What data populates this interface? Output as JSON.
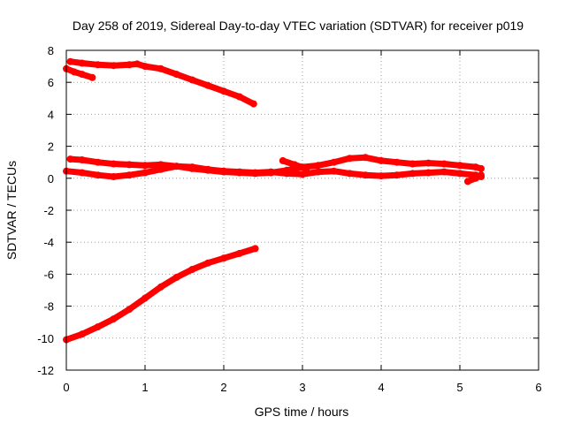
{
  "chart_data": {
    "type": "scatter",
    "title": "Day 258 of 2019, Sidereal Day-to-day VTEC variation (SDTVAR) for receiver p019",
    "xlabel": "GPS time / hours",
    "ylabel": "SDTVAR / TECUs",
    "xlim": [
      0,
      6
    ],
    "ylim": [
      -12,
      8
    ],
    "xticks": [
      0,
      1,
      2,
      3,
      4,
      5,
      6
    ],
    "yticks": [
      -12,
      -10,
      -8,
      -6,
      -4,
      -2,
      0,
      2,
      4,
      6,
      8
    ],
    "grid": true,
    "color": "#ff0000",
    "series": [
      {
        "x": [
          0.05,
          0.2,
          0.4,
          0.6,
          0.8,
          0.9,
          1.0,
          1.2,
          1.4,
          1.6,
          1.8,
          2.0,
          2.2,
          2.38
        ],
        "y": [
          7.3,
          7.2,
          7.1,
          7.05,
          7.1,
          7.15,
          7.0,
          6.85,
          6.5,
          6.15,
          5.8,
          5.45,
          5.1,
          4.65
        ]
      },
      {
        "x": [
          0.0,
          0.1,
          0.2,
          0.33
        ],
        "y": [
          6.85,
          6.65,
          6.5,
          6.3
        ]
      },
      {
        "x": [
          0.0,
          0.2,
          0.4,
          0.6,
          0.8,
          1.0,
          1.2,
          1.4,
          1.6,
          1.8,
          2.0,
          2.2,
          2.4
        ],
        "y": [
          -10.1,
          -9.75,
          -9.3,
          -8.8,
          -8.2,
          -7.5,
          -6.8,
          -6.2,
          -5.7,
          -5.3,
          -5.0,
          -4.7,
          -4.4
        ]
      },
      {
        "x": [
          0.05,
          0.2,
          0.4,
          0.6,
          0.8,
          1.0,
          1.2,
          1.4,
          1.6,
          1.8,
          2.0,
          2.2,
          2.4,
          2.6,
          2.8,
          3.0,
          3.2,
          3.4,
          3.6,
          3.8,
          4.0,
          4.2,
          4.4,
          4.6,
          4.8,
          5.0,
          5.2,
          5.27
        ],
        "y": [
          1.2,
          1.15,
          1.0,
          0.9,
          0.85,
          0.8,
          0.85,
          0.75,
          0.6,
          0.5,
          0.4,
          0.35,
          0.3,
          0.35,
          0.5,
          0.7,
          0.8,
          1.0,
          1.25,
          1.3,
          1.1,
          1.0,
          0.9,
          0.95,
          0.9,
          0.8,
          0.7,
          0.6
        ]
      },
      {
        "x": [
          0.0,
          0.2,
          0.4,
          0.6,
          0.8,
          1.0,
          1.2,
          1.4,
          1.6,
          1.8,
          2.0,
          2.2,
          2.4,
          2.6,
          2.8,
          3.0,
          3.2,
          3.4,
          3.6,
          3.8,
          4.0,
          4.2,
          4.4,
          4.6,
          4.8,
          5.0,
          5.2,
          5.27
        ],
        "y": [
          0.45,
          0.35,
          0.2,
          0.1,
          0.2,
          0.35,
          0.55,
          0.75,
          0.7,
          0.55,
          0.45,
          0.4,
          0.35,
          0.4,
          0.3,
          0.25,
          0.4,
          0.45,
          0.3,
          0.2,
          0.15,
          0.2,
          0.3,
          0.35,
          0.4,
          0.3,
          0.2,
          0.1
        ]
      },
      {
        "x": [
          2.75,
          2.9,
          3.05
        ],
        "y": [
          1.1,
          0.85,
          0.6
        ]
      },
      {
        "x": [
          5.1,
          5.2,
          5.27
        ],
        "y": [
          -0.2,
          0.0,
          0.2
        ]
      }
    ]
  }
}
